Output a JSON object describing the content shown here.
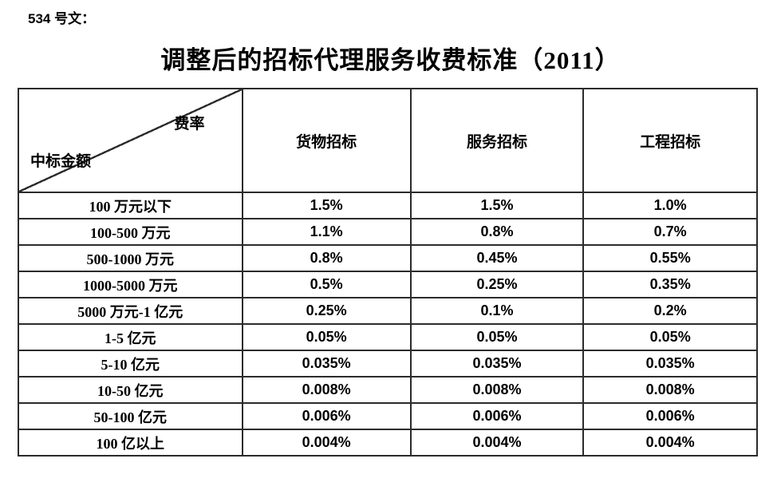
{
  "page": {
    "doc_label": "534 号文：",
    "title": "调整后的招标代理服务收费标准（2011）"
  },
  "colors": {
    "text": "#000000",
    "border": "#2b2b2b",
    "background": "#ffffff"
  },
  "table": {
    "corner": {
      "top_right": "费率",
      "bottom_left": "中标金额"
    },
    "columns": [
      "货物招标",
      "服务招标",
      "工程招标"
    ],
    "rows": [
      {
        "amount": "100 万元以下",
        "goods": "1.5%",
        "services": "1.5%",
        "engineering": "1.0%"
      },
      {
        "amount": "100-500 万元",
        "goods": "1.1%",
        "services": "0.8%",
        "engineering": "0.7%"
      },
      {
        "amount": "500-1000 万元",
        "goods": "0.8%",
        "services": "0.45%",
        "engineering": "0.55%"
      },
      {
        "amount": "1000-5000 万元",
        "goods": "0.5%",
        "services": "0.25%",
        "engineering": "0.35%"
      },
      {
        "amount": "5000 万元-1 亿元",
        "goods": "0.25%",
        "services": "0.1%",
        "engineering": "0.2%"
      },
      {
        "amount": "1-5 亿元",
        "goods": "0.05%",
        "services": "0.05%",
        "engineering": "0.05%"
      },
      {
        "amount": "5-10 亿元",
        "goods": "0.035%",
        "services": "0.035%",
        "engineering": "0.035%"
      },
      {
        "amount": "10-50 亿元",
        "goods": "0.008%",
        "services": "0.008%",
        "engineering": "0.008%"
      },
      {
        "amount": "50-100 亿元",
        "goods": "0.006%",
        "services": "0.006%",
        "engineering": "0.006%"
      },
      {
        "amount": "100 亿以上",
        "goods": "0.004%",
        "services": "0.004%",
        "engineering": "0.004%"
      }
    ]
  },
  "chart_data": {
    "type": "table",
    "title": "调整后的招标代理服务收费标准（2011）",
    "row_axis_label": "中标金额",
    "col_axis_label": "费率",
    "columns": [
      "货物招标",
      "服务招标",
      "工程招标"
    ],
    "rows": [
      "100 万元以下",
      "100-500 万元",
      "500-1000 万元",
      "1000-5000 万元",
      "5000 万元-1 亿元",
      "1-5 亿元",
      "5-10 亿元",
      "10-50 亿元",
      "50-100 亿元",
      "100 亿以上"
    ],
    "values": [
      [
        "1.5%",
        "1.5%",
        "1.0%"
      ],
      [
        "1.1%",
        "0.8%",
        "0.7%"
      ],
      [
        "0.8%",
        "0.45%",
        "0.55%"
      ],
      [
        "0.5%",
        "0.25%",
        "0.35%"
      ],
      [
        "0.25%",
        "0.1%",
        "0.2%"
      ],
      [
        "0.05%",
        "0.05%",
        "0.05%"
      ],
      [
        "0.035%",
        "0.035%",
        "0.035%"
      ],
      [
        "0.008%",
        "0.008%",
        "0.008%"
      ],
      [
        "0.006%",
        "0.006%",
        "0.006%"
      ],
      [
        "0.004%",
        "0.004%",
        "0.004%"
      ]
    ]
  }
}
